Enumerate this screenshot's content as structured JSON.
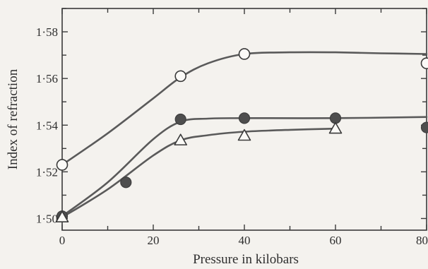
{
  "chart_data": {
    "type": "scatter",
    "title": "",
    "xlabel": "Pressure in kilobars",
    "ylabel": "Index of refraction",
    "xlim": [
      0,
      80
    ],
    "ylim": [
      1.495,
      1.59
    ],
    "x_ticks": [
      0,
      20,
      40,
      60,
      80
    ],
    "x_tick_labels": [
      "0",
      "20",
      "40",
      "60",
      "80"
    ],
    "y_ticks": [
      1.5,
      1.52,
      1.54,
      1.56,
      1.58
    ],
    "y_tick_labels": [
      "1·50",
      "1·52",
      "1·54",
      "1·56",
      "1·58"
    ],
    "grid": false,
    "legend": "none",
    "line_color": "#5a5a5a",
    "filled_color": "#4e4e4e",
    "series": [
      {
        "marker": "open-circle",
        "points": [
          [
            0,
            1.523
          ],
          [
            26,
            1.561
          ],
          [
            40,
            1.5705
          ],
          [
            80,
            1.5665
          ]
        ],
        "curve": [
          [
            0,
            1.523
          ],
          [
            10,
            1.5365
          ],
          [
            20,
            1.5515
          ],
          [
            26,
            1.5605
          ],
          [
            32,
            1.5665
          ],
          [
            40,
            1.5705
          ],
          [
            50,
            1.5712
          ],
          [
            60,
            1.5712
          ],
          [
            70,
            1.5708
          ],
          [
            80,
            1.5705
          ]
        ]
      },
      {
        "marker": "filled-circle",
        "points": [
          [
            0,
            1.501
          ],
          [
            14,
            1.5155
          ],
          [
            26,
            1.5425
          ],
          [
            40,
            1.543
          ],
          [
            60,
            1.543
          ],
          [
            80,
            1.539
          ]
        ],
        "curve": [
          [
            0,
            1.501
          ],
          [
            10,
            1.5155
          ],
          [
            20,
            1.534
          ],
          [
            26,
            1.5415
          ],
          [
            32,
            1.5428
          ],
          [
            40,
            1.543
          ],
          [
            60,
            1.543
          ],
          [
            80,
            1.5435
          ]
        ]
      },
      {
        "marker": "open-triangle",
        "points": [
          [
            0,
            1.5005
          ],
          [
            26,
            1.5335
          ],
          [
            40,
            1.5355
          ],
          [
            60,
            1.5385
          ]
        ],
        "curve": [
          [
            0,
            1.5005
          ],
          [
            10,
            1.5125
          ],
          [
            20,
            1.527
          ],
          [
            26,
            1.5335
          ],
          [
            32,
            1.5357
          ],
          [
            40,
            1.5372
          ],
          [
            50,
            1.538
          ],
          [
            60,
            1.5385
          ]
        ]
      }
    ]
  }
}
